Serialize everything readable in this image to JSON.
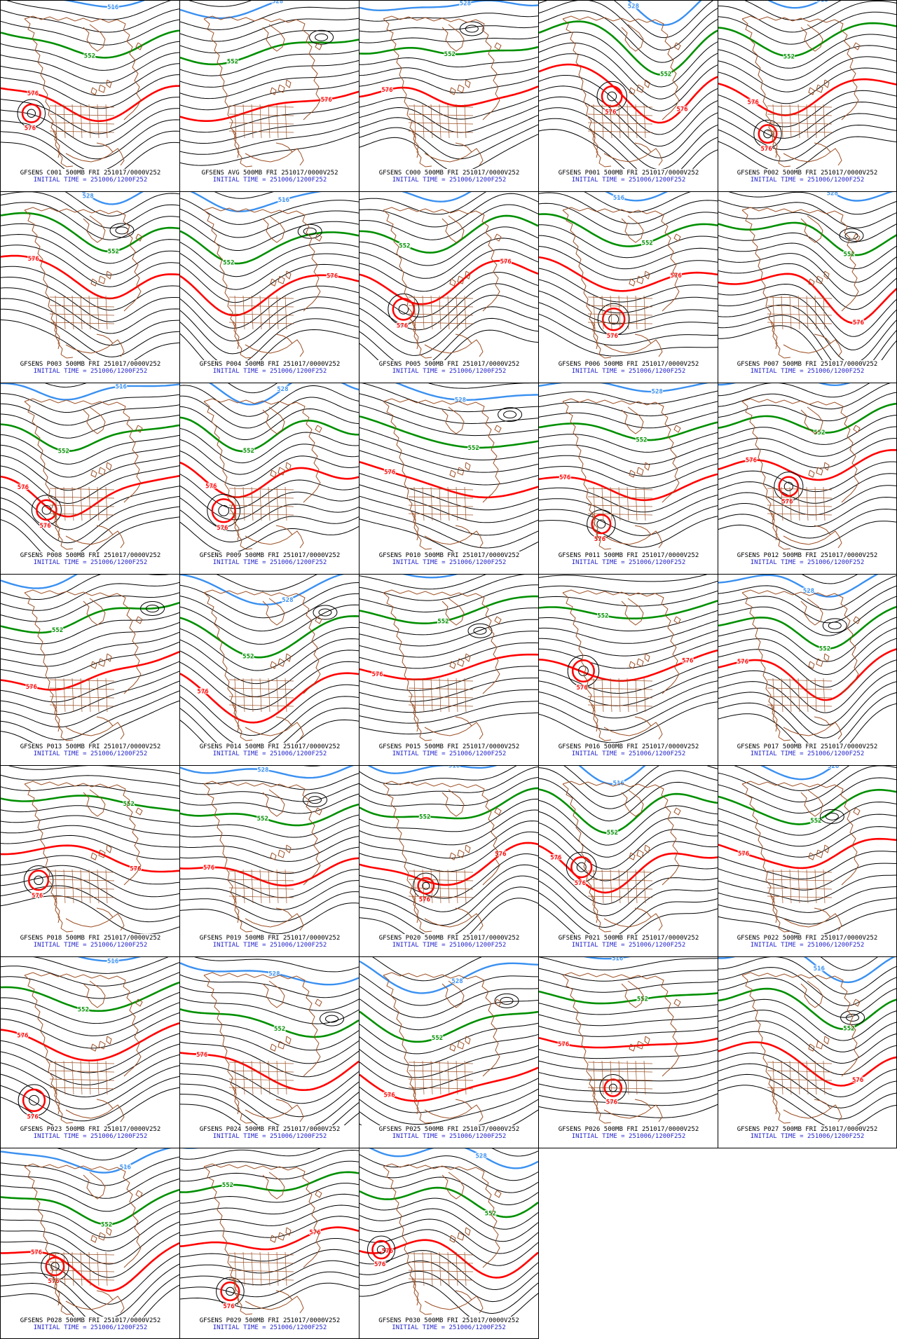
{
  "panels_common": {
    "product": "GFSENS",
    "field": "500MB",
    "valid_label": "FRI 251017/0000V252",
    "initial_time": "INITIAL TIME = 251006/1200F252"
  },
  "contour_labels": {
    "blue": "516",
    "green": "552",
    "red": "576",
    "blue_alt": "528"
  },
  "colors": {
    "contour_black": "#000000",
    "thick_green": "#008f00",
    "thick_red": "#ff0000",
    "thick_blue": "#3a90f0",
    "basemap_brown": "#9c4f24",
    "title_text": "#000000",
    "initial_text": "#2424cc",
    "border": "#000000",
    "background": "#ffffff"
  },
  "grid": {
    "columns": 5,
    "rows": 7,
    "filled_panels": 33
  },
  "cells": [
    {
      "id": "C001",
      "title": "GFSENS C001 500MB FRI 251017/0000V252"
    },
    {
      "id": "AVG",
      "title": "GFSENS AVG 500MB FRI 251017/0000V252"
    },
    {
      "id": "C000",
      "title": "GFSENS C000 500MB FRI 251017/0000V252"
    },
    {
      "id": "P001",
      "title": "GFSENS P001 500MB FRI 251017/0000V252"
    },
    {
      "id": "P002",
      "title": "GFSENS P002 500MB FRI 251017/0000V252"
    },
    {
      "id": "P003",
      "title": "GFSENS P003 500MB FRI 251017/0000V252"
    },
    {
      "id": "P004",
      "title": "GFSENS P004 500MB FRI 251017/0000V252"
    },
    {
      "id": "P005",
      "title": "GFSENS P005 500MB FRI 251017/0000V252"
    },
    {
      "id": "P006",
      "title": "GFSENS P006 500MB FRI 251017/0000V252"
    },
    {
      "id": "P007",
      "title": "GFSENS P007 500MB FRI 251017/0000V252"
    },
    {
      "id": "P008",
      "title": "GFSENS P008 500MB FRI 251017/0000V252"
    },
    {
      "id": "P009",
      "title": "GFSENS P009 500MB FRI 251017/0000V252"
    },
    {
      "id": "P010",
      "title": "GFSENS P010 500MB FRI 251017/0000V252"
    },
    {
      "id": "P011",
      "title": "GFSENS P011 500MB FRI 251017/0000V252"
    },
    {
      "id": "P012",
      "title": "GFSENS P012 500MB FRI 251017/0000V252"
    },
    {
      "id": "P013",
      "title": "GFSENS P013 500MB FRI 251017/0000V252"
    },
    {
      "id": "P014",
      "title": "GFSENS P014 500MB FRI 251017/0000V252"
    },
    {
      "id": "P015",
      "title": "GFSENS P015 500MB FRI 251017/0000V252"
    },
    {
      "id": "P016",
      "title": "GFSENS P016 500MB FRI 251017/0000V252"
    },
    {
      "id": "P017",
      "title": "GFSENS P017 500MB FRI 251017/0000V252"
    },
    {
      "id": "P018",
      "title": "GFSENS P018 500MB FRI 251017/0000V252"
    },
    {
      "id": "P019",
      "title": "GFSENS P019 500MB FRI 251017/0000V252"
    },
    {
      "id": "P020",
      "title": "GFSENS P020 500MB FRI 251017/0000V252"
    },
    {
      "id": "P021",
      "title": "GFSENS P021 500MB FRI 251017/0000V252"
    },
    {
      "id": "P022",
      "title": "GFSENS P022 500MB FRI 251017/0000V252"
    },
    {
      "id": "P023",
      "title": "GFSENS P023 500MB FRI 251017/0000V252"
    },
    {
      "id": "P024",
      "title": "GFSENS P024 500MB FRI 251017/0000V252"
    },
    {
      "id": "P025",
      "title": "GFSENS P025 500MB FRI 251017/0000V252"
    },
    {
      "id": "P026",
      "title": "GFSENS P026 500MB FRI 251017/0000V252"
    },
    {
      "id": "P027",
      "title": "GFSENS P027 500MB FRI 251017/0000V252"
    },
    {
      "id": "P028",
      "title": "GFSENS P028 500MB FRI 251017/0000V252"
    },
    {
      "id": "P029",
      "title": "GFSENS P029 500MB FRI 251017/0000V252"
    },
    {
      "id": "P030",
      "title": "GFSENS P030 500MB FRI 251017/0000V252"
    }
  ]
}
